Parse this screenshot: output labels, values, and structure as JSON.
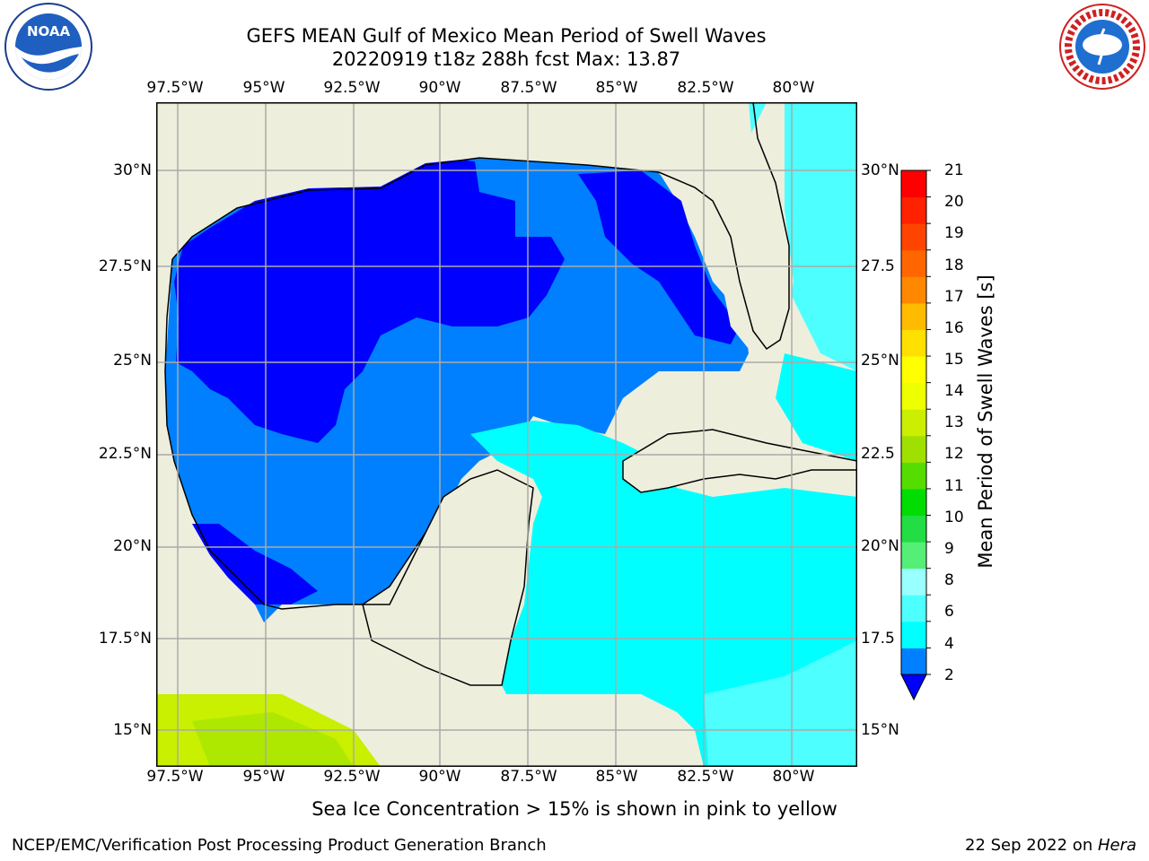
{
  "title": {
    "line1": "GEFS MEAN Gulf of Mexico Mean Period of Swell Waves",
    "line2": "20220919 t18z 288h fcst   Max: 13.87"
  },
  "map": {
    "region": "Gulf of Mexico",
    "lon_ticks": [
      "97.5°W",
      "95°W",
      "92.5°W",
      "90°W",
      "87.5°W",
      "85°W",
      "82.5°W",
      "80°W"
    ],
    "lat_ticks": [
      "30°N",
      "27.5°N",
      "25°N",
      "22.5°N",
      "20°N",
      "17.5°N",
      "15°N"
    ],
    "lat_ticks_right": [
      "30°N",
      "27.5",
      "25°N",
      "22.5",
      "20°N",
      "17.5",
      "15°N"
    ],
    "colors": {
      "land": "#eeeedd",
      "deep_blue": "#0000ff",
      "mid_blue": "#0080ff",
      "cyan": "#00ffff",
      "light_cyan": "#4dffff",
      "pacific_green": "#c8f000"
    }
  },
  "colorbar": {
    "label": "Mean Period of Swell Waves [s]",
    "ticks": [
      "21",
      "20",
      "19",
      "18",
      "17",
      "16",
      "15",
      "14",
      "13",
      "12",
      "11",
      "10",
      "9",
      "8",
      "6",
      "4",
      "2"
    ],
    "colors": [
      "#0080ff",
      "#00ffff",
      "#4dffff",
      "#99ffff",
      "#55ee77",
      "#22dd44",
      "#00dd00",
      "#55dd00",
      "#a0e000",
      "#ccee00",
      "#eeff00",
      "#ffff00",
      "#ffe000",
      "#ffbb00",
      "#ff8800",
      "#ff6600",
      "#ff4400",
      "#ff2200",
      "#ff0000"
    ],
    "extend_color": "#0000ff"
  },
  "note": "Sea Ice Concentration > 15% is shown in pink to yellow",
  "footer": {
    "left": "NCEP/EMC/Verification Post Processing Product Generation Branch",
    "date": "22 Sep 2022 on ",
    "host": "Hera"
  },
  "logos": {
    "noaa": "NOAA",
    "nws": "NATIONAL WEATHER SERVICE"
  }
}
